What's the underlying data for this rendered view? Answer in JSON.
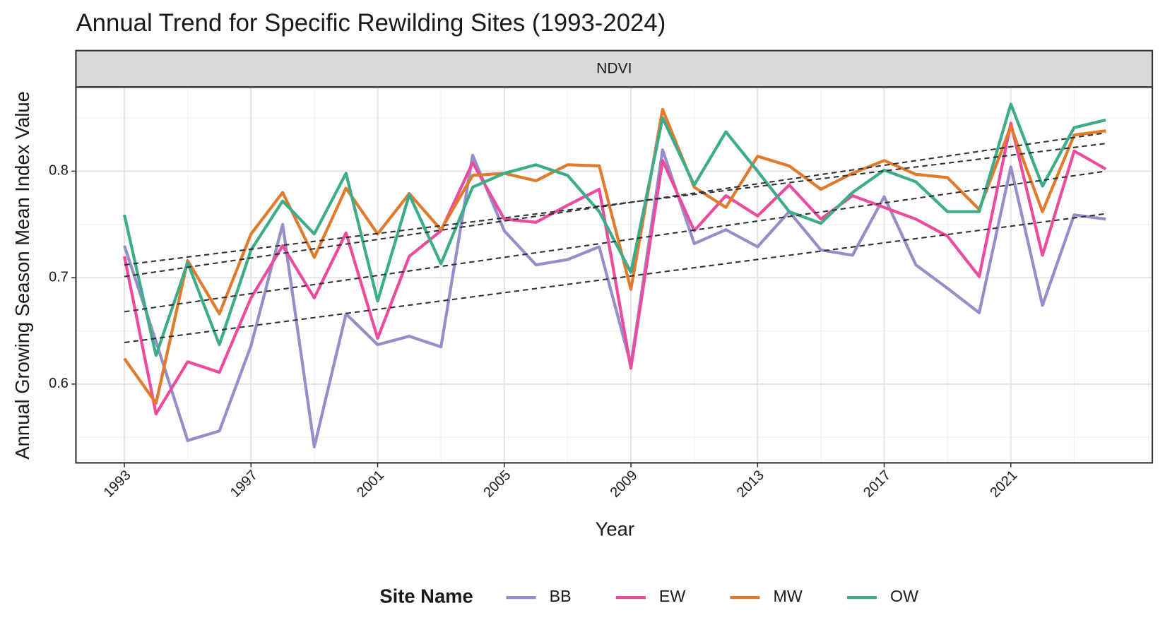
{
  "chart_data": {
    "type": "line",
    "title": "Annual Trend for Specific Rewilding Sites (1993-2024)",
    "facet_label": "NDVI",
    "x_label": "Year",
    "y_label": "Annual Growing Season Mean Index Value",
    "legend_title": "Site Name",
    "legend_position": "bottom",
    "grid": true,
    "x": [
      1993,
      1994,
      1995,
      1996,
      1997,
      1998,
      1999,
      2000,
      2001,
      2002,
      2003,
      2004,
      2005,
      2006,
      2007,
      2008,
      2009,
      2010,
      2011,
      2012,
      2013,
      2014,
      2015,
      2016,
      2017,
      2018,
      2019,
      2020,
      2021,
      2022,
      2023,
      2024
    ],
    "xlim": [
      1991.47,
      2025.47
    ],
    "xticks": [
      1993,
      1997,
      2001,
      2005,
      2009,
      2013,
      2017,
      2021
    ],
    "ylim": [
      0.526,
      0.879
    ],
    "yticks": [
      0.6,
      0.7,
      0.8
    ],
    "series": [
      {
        "name": "BB",
        "color": "#958fc9",
        "values": [
          0.73,
          0.64,
          0.547,
          0.556,
          0.636,
          0.75,
          0.541,
          0.666,
          0.637,
          0.645,
          0.635,
          0.815,
          0.744,
          0.712,
          0.717,
          0.729,
          0.618,
          0.82,
          0.732,
          0.745,
          0.729,
          0.762,
          0.726,
          0.721,
          0.776,
          0.712,
          0.69,
          0.667,
          0.804,
          0.674,
          0.759,
          0.755
        ]
      },
      {
        "name": "EW",
        "color": "#ec4b9e",
        "values": [
          0.72,
          0.572,
          0.621,
          0.611,
          0.681,
          0.73,
          0.681,
          0.742,
          0.643,
          0.72,
          0.744,
          0.808,
          0.755,
          0.752,
          0.768,
          0.783,
          0.615,
          0.81,
          0.744,
          0.777,
          0.758,
          0.787,
          0.755,
          0.777,
          0.766,
          0.755,
          0.739,
          0.701,
          0.845,
          0.721,
          0.819,
          0.802
        ]
      },
      {
        "name": "MW",
        "color": "#e07b2d",
        "values": [
          0.624,
          0.582,
          0.716,
          0.666,
          0.741,
          0.78,
          0.719,
          0.784,
          0.741,
          0.779,
          0.745,
          0.796,
          0.798,
          0.791,
          0.806,
          0.805,
          0.689,
          0.858,
          0.785,
          0.766,
          0.814,
          0.805,
          0.783,
          0.798,
          0.81,
          0.797,
          0.794,
          0.764,
          0.842,
          0.762,
          0.834,
          0.838
        ]
      },
      {
        "name": "OW",
        "color": "#3dac8a",
        "values": [
          0.759,
          0.627,
          0.714,
          0.637,
          0.726,
          0.772,
          0.741,
          0.798,
          0.678,
          0.778,
          0.713,
          0.785,
          0.798,
          0.806,
          0.796,
          0.762,
          0.705,
          0.85,
          0.787,
          0.837,
          0.8,
          0.762,
          0.751,
          0.78,
          0.801,
          0.79,
          0.762,
          0.762,
          0.863,
          0.786,
          0.841,
          0.848
        ]
      }
    ],
    "trend_lines": [
      {
        "x": [
          1993,
          2024
        ],
        "values": [
          0.639,
          0.76
        ]
      },
      {
        "x": [
          1993,
          2024
        ],
        "values": [
          0.668,
          0.8
        ]
      },
      {
        "x": [
          1993,
          2024
        ],
        "values": [
          0.701,
          0.836
        ]
      },
      {
        "x": [
          1993,
          2024
        ],
        "values": [
          0.712,
          0.826
        ]
      }
    ],
    "trend_color": "#333333"
  }
}
